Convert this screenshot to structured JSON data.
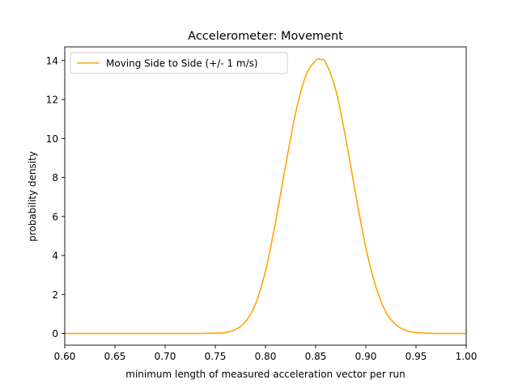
{
  "chart_data": {
    "type": "line",
    "title": "Accelerometer: Movement",
    "xlabel": "minimum length of measured acceleration vector per run",
    "ylabel": "probability density",
    "xlim": [
      0.6,
      1.0
    ],
    "ylim": [
      -0.6,
      14.7
    ],
    "xticks": [
      0.6,
      0.65,
      0.7,
      0.75,
      0.8,
      0.85,
      0.9,
      0.95,
      1.0
    ],
    "xtick_labels": [
      "0.60",
      "0.65",
      "0.70",
      "0.75",
      "0.80",
      "0.85",
      "0.90",
      "0.95",
      "1.00"
    ],
    "yticks": [
      0,
      2,
      4,
      6,
      8,
      10,
      12,
      14
    ],
    "ytick_labels": [
      "0",
      "2",
      "4",
      "6",
      "8",
      "10",
      "12",
      "14"
    ],
    "grid": false,
    "legend_position": "top-left",
    "series": [
      {
        "name": "Moving Side to Side (+/- 1 m/s)",
        "color": "#ffa500",
        "x": [
          0.6,
          0.72,
          0.74,
          0.75,
          0.76,
          0.77,
          0.78,
          0.79,
          0.8,
          0.81,
          0.82,
          0.83,
          0.84,
          0.85,
          0.855,
          0.86,
          0.87,
          0.88,
          0.89,
          0.9,
          0.91,
          0.92,
          0.93,
          0.94,
          0.95,
          0.97,
          1.0
        ],
        "y": [
          0.0,
          0.0,
          0.01,
          0.02,
          0.05,
          0.2,
          0.6,
          1.5,
          3.2,
          5.7,
          8.6,
          11.3,
          13.2,
          14.0,
          14.05,
          13.9,
          12.5,
          10.0,
          7.1,
          4.4,
          2.4,
          1.1,
          0.45,
          0.15,
          0.05,
          0.0,
          0.0
        ]
      }
    ]
  }
}
